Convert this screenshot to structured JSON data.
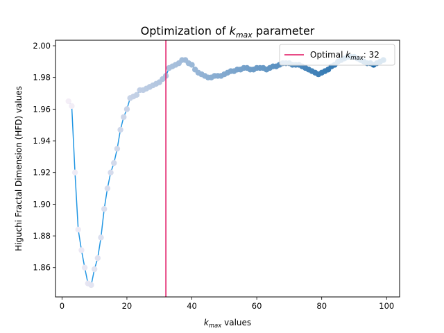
{
  "chart_data": {
    "type": "line",
    "title": {
      "prefix": "Optimization of ",
      "sym": "k",
      "sub": "max",
      "suffix": " parameter"
    },
    "xlabel": {
      "sym": "k",
      "sub": "max",
      "suffix": " values"
    },
    "ylabel": "Higuchi Fractal Dimension (HFD) values",
    "xlim": [
      -2,
      104
    ],
    "ylim": [
      1.8415,
      2.0035
    ],
    "xticks": [
      0,
      20,
      40,
      60,
      80,
      100
    ],
    "yticks": [
      1.86,
      1.88,
      1.9,
      1.92,
      1.94,
      1.96,
      1.98,
      2.0
    ],
    "ytick_labels": [
      "1.86",
      "1.88",
      "1.90",
      "1.92",
      "1.94",
      "1.96",
      "1.98",
      "2.00"
    ],
    "grid": false,
    "legend": {
      "position": "top-right",
      "label_prefix": "Optimal ",
      "sym": "k",
      "sub": "max",
      "label_suffix": ": 32"
    },
    "optimal_kmax": 32,
    "colors": {
      "line": "#2196e3",
      "vline": "#e0115f",
      "points_low": "#f4eef7",
      "points_high": "#0f63a6"
    },
    "series": [
      {
        "x": [
          2,
          3,
          4,
          5,
          6,
          7,
          8,
          9,
          10,
          11,
          12,
          13,
          14,
          15,
          16,
          17,
          18,
          19,
          20,
          21,
          22,
          23,
          24,
          25,
          26,
          27,
          28,
          29,
          30,
          31,
          32,
          33,
          34,
          35,
          36,
          37,
          38,
          39,
          40,
          41,
          42,
          43,
          44,
          45,
          46,
          47,
          48,
          49,
          50,
          51,
          52,
          53,
          54,
          55,
          56,
          57,
          58,
          59,
          60,
          61,
          62,
          63,
          64,
          65,
          66,
          67,
          68,
          69,
          70,
          71,
          72,
          73,
          74,
          75,
          76,
          77,
          78,
          79,
          80,
          81,
          82,
          83,
          84,
          85,
          86,
          87,
          88,
          89,
          90,
          91,
          92,
          93,
          94,
          95,
          96,
          97,
          98,
          99
        ],
        "values": [
          1.965,
          1.962,
          1.92,
          1.884,
          1.871,
          1.86,
          1.85,
          1.849,
          1.859,
          1.866,
          1.879,
          1.897,
          1.91,
          1.92,
          1.926,
          1.935,
          1.947,
          1.955,
          1.96,
          1.967,
          1.968,
          1.969,
          1.972,
          1.972,
          1.973,
          1.974,
          1.975,
          1.976,
          1.977,
          1.979,
          1.981,
          1.986,
          1.987,
          1.988,
          1.989,
          1.991,
          1.991,
          1.989,
          1.988,
          1.985,
          1.983,
          1.982,
          1.981,
          1.98,
          1.98,
          1.981,
          1.981,
          1.981,
          1.982,
          1.983,
          1.984,
          1.984,
          1.985,
          1.985,
          1.986,
          1.986,
          1.985,
          1.985,
          1.986,
          1.986,
          1.986,
          1.985,
          1.986,
          1.987,
          1.987,
          1.988,
          1.989,
          1.989,
          1.989,
          1.988,
          1.988,
          1.988,
          1.987,
          1.986,
          1.985,
          1.984,
          1.983,
          1.982,
          1.983,
          1.984,
          1.985,
          1.987,
          1.988,
          1.99,
          1.991,
          1.992,
          1.993,
          1.993,
          1.993,
          1.992,
          1.991,
          1.99,
          1.989,
          1.989,
          1.988,
          1.989,
          1.99,
          1.991
        ]
      }
    ]
  }
}
